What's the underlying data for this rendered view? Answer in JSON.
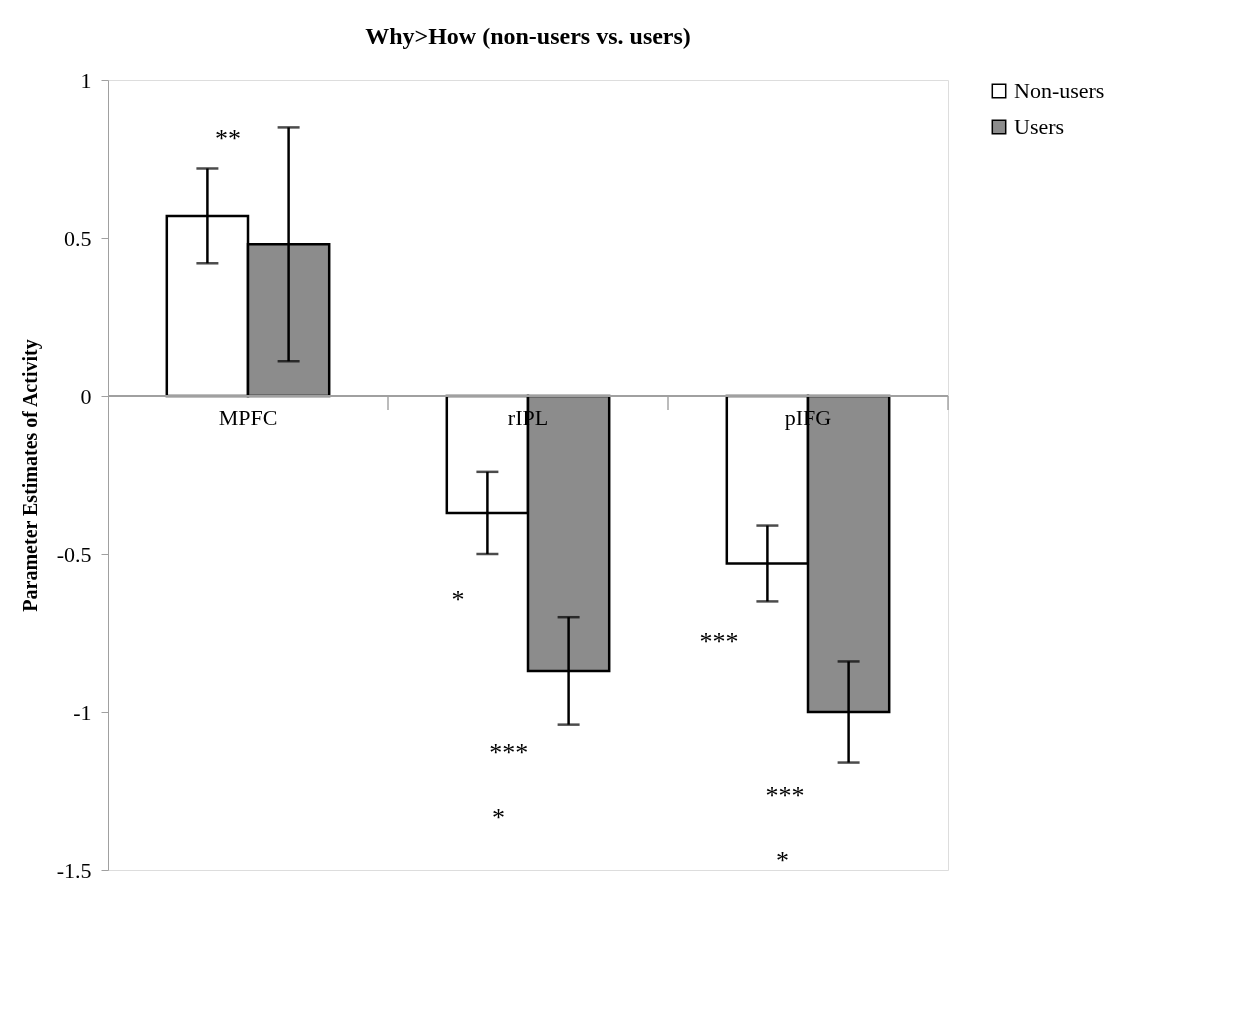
{
  "chart_data": {
    "type": "bar",
    "title": "Why>How (non-users vs. users)",
    "ylabel": "Parameter Estimates of Activity",
    "categories": [
      "MPFC",
      "rIPL",
      "pIFG"
    ],
    "series": [
      {
        "name": "Non-users",
        "color": "#ffffff",
        "values": [
          0.57,
          -0.37,
          -0.53
        ],
        "errors": [
          0.15,
          0.13,
          0.12
        ]
      },
      {
        "name": "Users",
        "color": "#8c8c8c",
        "values": [
          0.48,
          -0.87,
          -1.0
        ],
        "errors": [
          0.37,
          0.17,
          0.16
        ]
      }
    ],
    "ylim": [
      -1.5,
      1
    ],
    "yticks": [
      -1.5,
      -1,
      -0.5,
      0,
      0.5,
      1
    ],
    "grid": false,
    "legend": "right",
    "annotations": [
      "**",
      {
        "text": "*",
        "x": "rIPL",
        "y": -0.645
      },
      {
        "text": "***",
        "x": "pIFG",
        "y": -0.78
      },
      "***",
      "*",
      "***",
      "*"
    ]
  }
}
